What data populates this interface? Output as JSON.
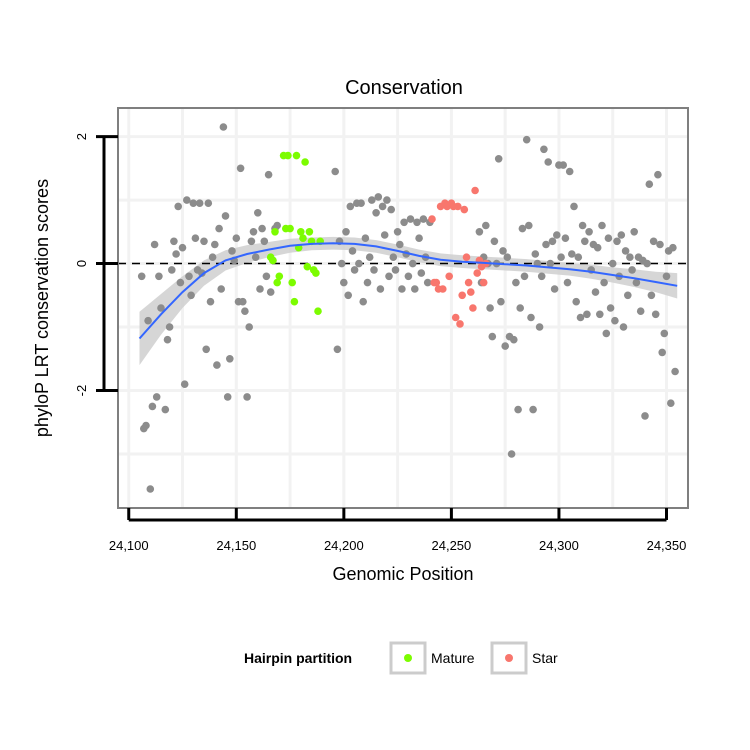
{
  "chart_data": {
    "type": "scatter",
    "title": "Conservation",
    "xlabel": "Genomic Position",
    "ylabel": "phyloP LRT conservation scores",
    "xlim": [
      24095,
      24360
    ],
    "ylim": [
      -3.85,
      2.45
    ],
    "x_ticks": [
      24100,
      24150,
      24200,
      24250,
      24300,
      24350
    ],
    "x_tick_labels": [
      "24,100",
      "24,150",
      "24,200",
      "24,250",
      "24,300",
      "24,350"
    ],
    "y_ticks": [
      -2,
      0,
      2
    ],
    "y_tick_labels": [
      "-2",
      "0",
      "2"
    ],
    "x_grid_minor": [
      24125,
      24175,
      24225,
      24275,
      24325
    ],
    "y_grid_minor": [
      -3,
      -1,
      1
    ],
    "reference_line": {
      "y": 0,
      "style": "dashed",
      "color": "#000000"
    },
    "legend": {
      "title": "Hairpin partition",
      "position": "bottom",
      "entries": [
        {
          "label": "Mature",
          "color": "#7cfc00"
        },
        {
          "label": "Star",
          "color": "#f8766d"
        }
      ]
    },
    "colors": {
      "other": "#8c8c8c",
      "mature": "#7cfc00",
      "star": "#f8766d",
      "smooth": "#3366ff",
      "ribbon": "#cfcfcf",
      "panel_border": "#7f7f7f",
      "grid": "#f2f2f2"
    },
    "series": [
      {
        "name": "Other",
        "color": "#8c8c8c",
        "points": [
          [
            24106,
            -0.2
          ],
          [
            24107,
            -2.6
          ],
          [
            24108,
            -2.55
          ],
          [
            24109,
            -0.9
          ],
          [
            24110,
            -3.55
          ],
          [
            24111,
            -2.25
          ],
          [
            24112,
            0.3
          ],
          [
            24113,
            -2.1
          ],
          [
            24114,
            -0.2
          ],
          [
            24115,
            -0.7
          ],
          [
            24117,
            -2.3
          ],
          [
            24118,
            -1.2
          ],
          [
            24119,
            -1.0
          ],
          [
            24120,
            -0.1
          ],
          [
            24121,
            0.35
          ],
          [
            24122,
            0.15
          ],
          [
            24123,
            0.9
          ],
          [
            24124,
            -0.3
          ],
          [
            24125,
            0.25
          ],
          [
            24126,
            -1.9
          ],
          [
            24127,
            1.0
          ],
          [
            24128,
            -0.2
          ],
          [
            24129,
            -0.5
          ],
          [
            24130,
            0.95
          ],
          [
            24131,
            0.4
          ],
          [
            24132,
            -0.1
          ],
          [
            24133,
            0.95
          ],
          [
            24134,
            -0.15
          ],
          [
            24135,
            0.35
          ],
          [
            24136,
            -1.35
          ],
          [
            24137,
            0.95
          ],
          [
            24138,
            -0.6
          ],
          [
            24139,
            0.1
          ],
          [
            24140,
            0.3
          ],
          [
            24141,
            -1.6
          ],
          [
            24142,
            0.55
          ],
          [
            24143,
            -0.4
          ],
          [
            24144,
            2.15
          ],
          [
            24145,
            0.75
          ],
          [
            24146,
            -2.1
          ],
          [
            24147,
            -1.5
          ],
          [
            24148,
            0.2
          ],
          [
            24149,
            0.05
          ],
          [
            24150,
            0.4
          ],
          [
            24151,
            -0.6
          ],
          [
            24152,
            1.5
          ],
          [
            24153,
            -0.6
          ],
          [
            24154,
            -0.75
          ],
          [
            24155,
            -2.1
          ],
          [
            24156,
            -1.0
          ],
          [
            24157,
            0.35
          ],
          [
            24158,
            0.5
          ],
          [
            24159,
            0.1
          ],
          [
            24160,
            0.8
          ],
          [
            24161,
            -0.4
          ],
          [
            24162,
            0.55
          ],
          [
            24163,
            0.35
          ],
          [
            24164,
            -0.2
          ],
          [
            24165,
            1.4
          ],
          [
            24166,
            -0.45
          ],
          [
            24167,
            0.05
          ],
          [
            24168,
            0.55
          ],
          [
            24169,
            0.6
          ],
          [
            24196,
            1.45
          ],
          [
            24197,
            -1.35
          ],
          [
            24198,
            0.35
          ],
          [
            24199,
            0.0
          ],
          [
            24200,
            -0.3
          ],
          [
            24201,
            0.5
          ],
          [
            24202,
            -0.5
          ],
          [
            24203,
            0.9
          ],
          [
            24204,
            0.2
          ],
          [
            24205,
            -0.1
          ],
          [
            24206,
            0.95
          ],
          [
            24207,
            0.0
          ],
          [
            24208,
            0.95
          ],
          [
            24209,
            -0.6
          ],
          [
            24210,
            0.4
          ],
          [
            24211,
            -0.3
          ],
          [
            24212,
            0.1
          ],
          [
            24213,
            1.0
          ],
          [
            24214,
            -0.1
          ],
          [
            24215,
            0.8
          ],
          [
            24216,
            1.05
          ],
          [
            24217,
            -0.4
          ],
          [
            24218,
            0.9
          ],
          [
            24219,
            0.45
          ],
          [
            24220,
            1.0
          ],
          [
            24221,
            -0.2
          ],
          [
            24222,
            0.85
          ],
          [
            24223,
            0.1
          ],
          [
            24224,
            -0.1
          ],
          [
            24225,
            0.5
          ],
          [
            24226,
            0.3
          ],
          [
            24227,
            -0.4
          ],
          [
            24228,
            0.65
          ],
          [
            24229,
            0.15
          ],
          [
            24230,
            -0.2
          ],
          [
            24231,
            0.7
          ],
          [
            24232,
            0.0
          ],
          [
            24233,
            -0.4
          ],
          [
            24234,
            0.65
          ],
          [
            24235,
            0.4
          ],
          [
            24236,
            -0.15
          ],
          [
            24237,
            0.7
          ],
          [
            24238,
            0.1
          ],
          [
            24239,
            -0.3
          ],
          [
            24240,
            0.65
          ],
          [
            24263,
            0.5
          ],
          [
            24264,
            -0.3
          ],
          [
            24265,
            0.1
          ],
          [
            24266,
            0.6
          ],
          [
            24267,
            0.0
          ],
          [
            24268,
            -0.7
          ],
          [
            24269,
            -1.15
          ],
          [
            24270,
            0.35
          ],
          [
            24271,
            0.0
          ],
          [
            24272,
            1.65
          ],
          [
            24273,
            -0.6
          ],
          [
            24274,
            0.2
          ],
          [
            24275,
            -1.3
          ],
          [
            24276,
            0.1
          ],
          [
            24277,
            -1.15
          ],
          [
            24278,
            -3.0
          ],
          [
            24279,
            -1.2
          ],
          [
            24280,
            -0.3
          ],
          [
            24281,
            -2.3
          ],
          [
            24282,
            -0.7
          ],
          [
            24283,
            0.55
          ],
          [
            24284,
            -0.2
          ],
          [
            24285,
            1.95
          ],
          [
            24286,
            0.6
          ],
          [
            24287,
            -0.85
          ],
          [
            24288,
            -2.3
          ],
          [
            24289,
            0.15
          ],
          [
            24290,
            0.0
          ],
          [
            24291,
            -1.0
          ],
          [
            24292,
            -0.2
          ],
          [
            24293,
            1.8
          ],
          [
            24294,
            0.3
          ],
          [
            24295,
            1.6
          ],
          [
            24296,
            0.0
          ],
          [
            24297,
            0.35
          ],
          [
            24298,
            -0.4
          ],
          [
            24299,
            0.45
          ],
          [
            24300,
            1.55
          ],
          [
            24301,
            0.1
          ],
          [
            24302,
            1.55
          ],
          [
            24303,
            0.4
          ],
          [
            24304,
            -0.3
          ],
          [
            24305,
            1.45
          ],
          [
            24306,
            0.15
          ],
          [
            24307,
            0.9
          ],
          [
            24308,
            -0.6
          ],
          [
            24309,
            0.1
          ],
          [
            24310,
            -0.85
          ],
          [
            24311,
            0.6
          ],
          [
            24312,
            0.35
          ],
          [
            24313,
            -0.8
          ],
          [
            24314,
            0.5
          ],
          [
            24315,
            -0.1
          ],
          [
            24316,
            0.3
          ],
          [
            24317,
            -0.45
          ],
          [
            24318,
            0.25
          ],
          [
            24319,
            -0.8
          ],
          [
            24320,
            0.6
          ],
          [
            24321,
            -0.3
          ],
          [
            24322,
            -1.1
          ],
          [
            24323,
            0.4
          ],
          [
            24324,
            -0.7
          ],
          [
            24325,
            0.0
          ],
          [
            24326,
            -0.9
          ],
          [
            24327,
            0.35
          ],
          [
            24328,
            -0.2
          ],
          [
            24329,
            0.45
          ],
          [
            24330,
            -1.0
          ],
          [
            24331,
            0.2
          ],
          [
            24332,
            -0.5
          ],
          [
            24333,
            0.1
          ],
          [
            24334,
            -0.1
          ],
          [
            24335,
            0.5
          ],
          [
            24336,
            -0.3
          ],
          [
            24337,
            0.1
          ],
          [
            24338,
            -0.75
          ],
          [
            24339,
            0.05
          ],
          [
            24340,
            -2.4
          ],
          [
            24341,
            0.0
          ],
          [
            24342,
            1.25
          ],
          [
            24343,
            -0.5
          ],
          [
            24344,
            0.35
          ],
          [
            24345,
            -0.8
          ],
          [
            24346,
            1.4
          ],
          [
            24347,
            0.3
          ],
          [
            24348,
            -1.4
          ],
          [
            24349,
            -1.1
          ],
          [
            24350,
            -0.2
          ],
          [
            24351,
            0.2
          ],
          [
            24352,
            -2.2
          ],
          [
            24353,
            0.25
          ],
          [
            24354,
            -1.7
          ]
        ]
      },
      {
        "name": "Mature",
        "color": "#7cfc00",
        "points": [
          [
            24166,
            0.1
          ],
          [
            24167,
            0.05
          ],
          [
            24168,
            0.5
          ],
          [
            24169,
            -0.3
          ],
          [
            24170,
            -0.2
          ],
          [
            24172,
            1.7
          ],
          [
            24173,
            0.55
          ],
          [
            24174,
            1.7
          ],
          [
            24175,
            0.55
          ],
          [
            24176,
            -0.3
          ],
          [
            24177,
            -0.6
          ],
          [
            24178,
            1.7
          ],
          [
            24179,
            0.25
          ],
          [
            24180,
            0.5
          ],
          [
            24181,
            0.4
          ],
          [
            24182,
            1.6
          ],
          [
            24183,
            -0.05
          ],
          [
            24184,
            0.5
          ],
          [
            24185,
            0.35
          ],
          [
            24186,
            -0.1
          ],
          [
            24187,
            -0.15
          ],
          [
            24188,
            -0.75
          ],
          [
            24189,
            0.35
          ]
        ]
      },
      {
        "name": "Star",
        "color": "#f8766d",
        "points": [
          [
            24241,
            0.7
          ],
          [
            24242,
            -0.3
          ],
          [
            24243,
            -0.3
          ],
          [
            24244,
            -0.4
          ],
          [
            24245,
            0.9
          ],
          [
            24246,
            -0.4
          ],
          [
            24247,
            0.95
          ],
          [
            24248,
            0.9
          ],
          [
            24249,
            -0.2
          ],
          [
            24250,
            0.95
          ],
          [
            24251,
            0.9
          ],
          [
            24252,
            -0.85
          ],
          [
            24253,
            0.9
          ],
          [
            24254,
            -0.95
          ],
          [
            24255,
            -0.5
          ],
          [
            24256,
            0.85
          ],
          [
            24257,
            0.1
          ],
          [
            24258,
            -0.3
          ],
          [
            24259,
            -0.45
          ],
          [
            24260,
            -0.7
          ],
          [
            24261,
            1.15
          ],
          [
            24262,
            -0.15
          ],
          [
            24263,
            0.05
          ],
          [
            24264,
            -0.05
          ],
          [
            24265,
            -0.3
          ],
          [
            24266,
            0.0
          ]
        ]
      }
    ],
    "smooth": {
      "method": "loess",
      "points": [
        [
          24105,
          -1.18
        ],
        [
          24115,
          -0.8
        ],
        [
          24125,
          -0.45
        ],
        [
          24135,
          -0.15
        ],
        [
          24145,
          0.05
        ],
        [
          24155,
          0.15
        ],
        [
          24165,
          0.22
        ],
        [
          24175,
          0.28
        ],
        [
          24185,
          0.31
        ],
        [
          24195,
          0.32
        ],
        [
          24205,
          0.31
        ],
        [
          24215,
          0.27
        ],
        [
          24225,
          0.2
        ],
        [
          24235,
          0.12
        ],
        [
          24245,
          0.06
        ],
        [
          24255,
          0.03
        ],
        [
          24265,
          0.01
        ],
        [
          24275,
          -0.01
        ],
        [
          24285,
          -0.03
        ],
        [
          24295,
          -0.06
        ],
        [
          24305,
          -0.09
        ],
        [
          24315,
          -0.13
        ],
        [
          24325,
          -0.18
        ],
        [
          24335,
          -0.23
        ],
        [
          24345,
          -0.29
        ],
        [
          24355,
          -0.35
        ]
      ],
      "ci_halfwidth": [
        0.42,
        0.32,
        0.25,
        0.2,
        0.16,
        0.14,
        0.12,
        0.11,
        0.1,
        0.1,
        0.1,
        0.1,
        0.1,
        0.1,
        0.1,
        0.1,
        0.1,
        0.1,
        0.1,
        0.1,
        0.1,
        0.11,
        0.12,
        0.14,
        0.16,
        0.2
      ]
    }
  }
}
